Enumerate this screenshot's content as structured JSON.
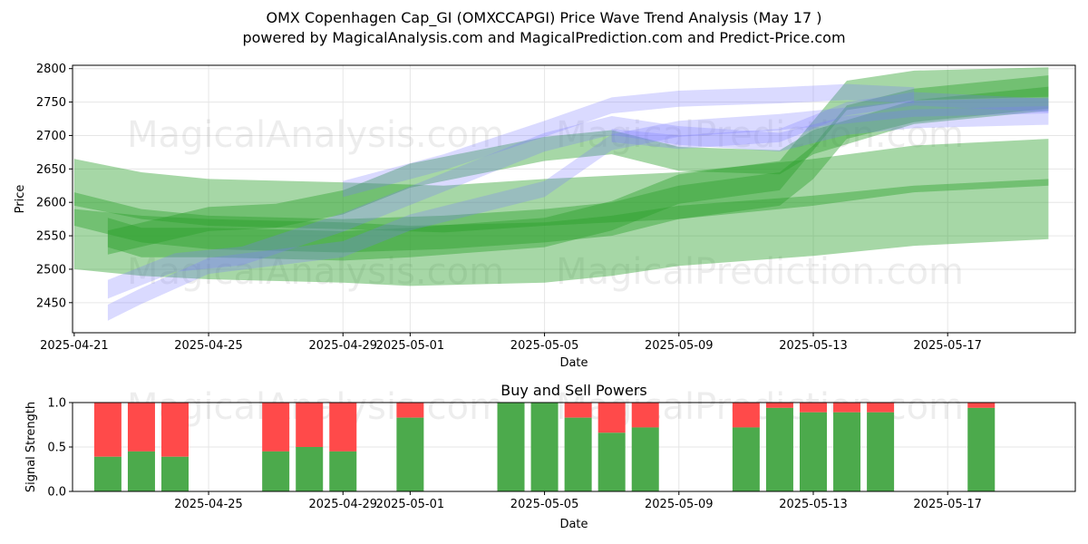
{
  "header": {
    "title": "OMX Copenhagen Cap_GI (OMXCCAPGI) Price Wave Trend Analysis (May 17 )",
    "subtitle": "powered by MagicalAnalysis.com and MagicalPrediction.com and Predict-Price.com"
  },
  "watermarks": [
    "MagicalAnalysis.com",
    "MagicalPrediction.com"
  ],
  "colors": {
    "green_band": "#2ca02c",
    "blue_band": "#7b7bff",
    "buy": "#4caa4c",
    "sell": "#ff4a4a"
  },
  "chart_data": [
    {
      "type": "area",
      "xlabel": "Date",
      "ylabel": "Price",
      "ylim": [
        2405,
        2805
      ],
      "xlim": [
        "2025-04-20",
        "2025-05-21"
      ],
      "x_ticks": [
        "2025-04-21",
        "2025-04-25",
        "2025-04-29",
        "2025-05-01",
        "2025-05-05",
        "2025-05-09",
        "2025-05-13",
        "2025-05-17"
      ],
      "y_ticks": [
        2450,
        2500,
        2550,
        2600,
        2650,
        2700,
        2750,
        2800
      ],
      "grid": true,
      "series": [
        {
          "color": "green",
          "points": [
            [
              "2025-04-21",
              2630
            ],
            [
              "2025-04-23",
              2610
            ],
            [
              "2025-04-25",
              2600
            ],
            [
              "2025-04-29",
              2595
            ],
            [
              "2025-05-02",
              2590
            ],
            [
              "2025-05-05",
              2600
            ],
            [
              "2025-05-09",
              2610
            ],
            [
              "2025-05-13",
              2630
            ],
            [
              "2025-05-16",
              2650
            ],
            [
              "2025-05-20",
              2660
            ]
          ],
          "half_width": 35
        },
        {
          "color": "green",
          "points": [
            [
              "2025-04-21",
              2590
            ],
            [
              "2025-04-23",
              2565
            ],
            [
              "2025-04-25",
              2555
            ],
            [
              "2025-04-29",
              2550
            ],
            [
              "2025-05-02",
              2555
            ],
            [
              "2025-05-05",
              2565
            ],
            [
              "2025-05-07",
              2575
            ],
            [
              "2025-05-09",
              2600
            ],
            [
              "2025-05-12",
              2620
            ],
            [
              "2025-05-13",
              2660
            ],
            [
              "2025-05-14",
              2720
            ],
            [
              "2025-05-16",
              2745
            ],
            [
              "2025-05-20",
              2765
            ]
          ],
          "half_width": 25
        },
        {
          "color": "green",
          "points": [
            [
              "2025-04-22",
              2555
            ],
            [
              "2025-04-23",
              2540
            ],
            [
              "2025-04-25",
              2540
            ],
            [
              "2025-04-29",
              2535
            ],
            [
              "2025-05-01",
              2540
            ],
            [
              "2025-05-05",
              2555
            ],
            [
              "2025-05-07",
              2580
            ],
            [
              "2025-05-09",
              2620
            ],
            [
              "2025-05-12",
              2640
            ],
            [
              "2025-05-13",
              2700
            ],
            [
              "2025-05-14",
              2760
            ],
            [
              "2025-05-16",
              2775
            ],
            [
              "2025-05-20",
              2780
            ]
          ],
          "half_width": 22
        },
        {
          "color": "green",
          "points": [
            [
              "2025-04-22",
              2540
            ],
            [
              "2025-04-25",
              2575
            ],
            [
              "2025-04-27",
              2580
            ],
            [
              "2025-04-29",
              2600
            ],
            [
              "2025-05-01",
              2640
            ],
            [
              "2025-05-05",
              2680
            ],
            [
              "2025-05-07",
              2690
            ],
            [
              "2025-05-09",
              2665
            ],
            [
              "2025-05-12",
              2660
            ],
            [
              "2025-05-13",
              2690
            ],
            [
              "2025-05-16",
              2735
            ],
            [
              "2025-05-20",
              2755
            ]
          ],
          "half_width": 18
        },
        {
          "color": "green",
          "points": [
            [
              "2025-04-21",
              2545
            ],
            [
              "2025-04-23",
              2535
            ],
            [
              "2025-04-25",
              2530
            ],
            [
              "2025-04-29",
              2525
            ],
            [
              "2025-05-01",
              2520
            ],
            [
              "2025-05-05",
              2525
            ],
            [
              "2025-05-07",
              2535
            ],
            [
              "2025-05-09",
              2550
            ],
            [
              "2025-05-13",
              2565
            ],
            [
              "2025-05-16",
              2580
            ],
            [
              "2025-05-20",
              2590
            ]
          ],
          "half_width": 45
        },
        {
          "color": "blue",
          "points": [
            [
              "2025-04-22",
              2435
            ],
            [
              "2025-04-23",
              2460
            ],
            [
              "2025-04-25",
              2505
            ],
            [
              "2025-04-29",
              2530
            ],
            [
              "2025-05-01",
              2570
            ],
            [
              "2025-05-05",
              2620
            ],
            [
              "2025-05-07",
              2690
            ],
            [
              "2025-05-09",
              2710
            ],
            [
              "2025-05-12",
              2720
            ],
            [
              "2025-05-14",
              2730
            ],
            [
              "2025-05-16",
              2740
            ],
            [
              "2025-05-20",
              2745
            ]
          ],
          "half_width": 12
        },
        {
          "color": "blue",
          "points": [
            [
              "2025-04-22",
              2470
            ],
            [
              "2025-04-24",
              2510
            ],
            [
              "2025-04-26",
              2520
            ],
            [
              "2025-04-29",
              2570
            ],
            [
              "2025-05-02",
              2630
            ],
            [
              "2025-05-05",
              2690
            ],
            [
              "2025-05-07",
              2715
            ],
            [
              "2025-05-09",
              2700
            ],
            [
              "2025-05-12",
              2690
            ],
            [
              "2025-05-14",
              2715
            ],
            [
              "2025-05-16",
              2725
            ],
            [
              "2025-05-20",
              2730
            ]
          ],
          "half_width": 14
        },
        {
          "color": "blue",
          "points": [
            [
              "2025-04-29",
              2620
            ],
            [
              "2025-05-02",
              2660
            ],
            [
              "2025-05-05",
              2710
            ],
            [
              "2025-05-07",
              2745
            ],
            [
              "2025-05-09",
              2755
            ],
            [
              "2025-05-12",
              2760
            ],
            [
              "2025-05-14",
              2765
            ],
            [
              "2025-05-16",
              2760
            ]
          ],
          "half_width": 12
        },
        {
          "color": "blue",
          "points": [
            [
              "2025-05-07",
              2700
            ],
            [
              "2025-05-09",
              2690
            ],
            [
              "2025-05-12",
              2700
            ],
            [
              "2025-05-14",
              2740
            ],
            [
              "2025-05-16",
              2755
            ],
            [
              "2025-05-20",
              2745
            ]
          ],
          "half_width": 10
        }
      ]
    },
    {
      "type": "bar",
      "title": "Buy and Sell Powers",
      "xlabel": "Date",
      "ylabel": "Signal Strength",
      "ylim": [
        0,
        1
      ],
      "xlim": [
        "2025-04-20",
        "2025-05-21"
      ],
      "x_ticks": [
        "2025-04-25",
        "2025-04-29",
        "2025-05-01",
        "2025-05-05",
        "2025-05-09",
        "2025-05-13",
        "2025-05-17"
      ],
      "y_ticks": [
        "0.0",
        "0.5",
        "1.0"
      ],
      "grid": true,
      "series": [
        {
          "name": "buy",
          "color": "green"
        },
        {
          "name": "sell",
          "color": "red"
        }
      ],
      "bars": [
        {
          "date": "2025-04-22",
          "buy": 0.39
        },
        {
          "date": "2025-04-23",
          "buy": 0.45
        },
        {
          "date": "2025-04-24",
          "buy": 0.39
        },
        {
          "date": "2025-04-27",
          "buy": 0.45
        },
        {
          "date": "2025-04-28",
          "buy": 0.5
        },
        {
          "date": "2025-04-29",
          "buy": 0.45
        },
        {
          "date": "2025-05-01",
          "buy": 0.83
        },
        {
          "date": "2025-05-04",
          "buy": 1.0
        },
        {
          "date": "2025-05-05",
          "buy": 1.0
        },
        {
          "date": "2025-05-06",
          "buy": 0.83
        },
        {
          "date": "2025-05-07",
          "buy": 0.66
        },
        {
          "date": "2025-05-08",
          "buy": 0.72
        },
        {
          "date": "2025-05-11",
          "buy": 0.72
        },
        {
          "date": "2025-05-12",
          "buy": 0.94
        },
        {
          "date": "2025-05-13",
          "buy": 0.89
        },
        {
          "date": "2025-05-14",
          "buy": 0.89
        },
        {
          "date": "2025-05-15",
          "buy": 0.89
        },
        {
          "date": "2025-05-18",
          "buy": 0.94
        }
      ]
    }
  ]
}
